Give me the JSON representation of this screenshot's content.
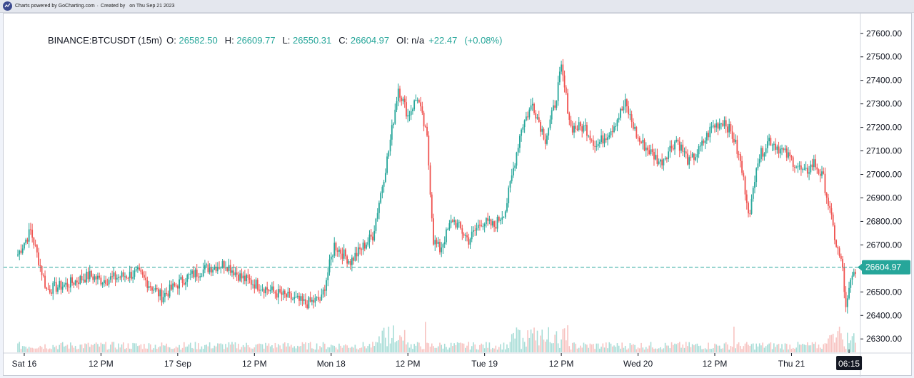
{
  "header": {
    "powered_by": "Charts powered by GoCharting.com",
    "created_by": "Created by",
    "date": "on Thu Sep 21 2023"
  },
  "legend": {
    "symbol": "BINANCE:BTCUSDT (15m)",
    "o_label": "O:",
    "o_value": "26582.50",
    "h_label": "H:",
    "h_value": "26609.77",
    "l_label": "L:",
    "l_value": "26550.31",
    "c_label": "C:",
    "c_value": "26604.97",
    "oi_label": "OI:",
    "oi_value": "n/a",
    "change": "+22.47",
    "change_pct": "(+0.08%)"
  },
  "colors": {
    "up": "#26a69a",
    "down": "#ef5350",
    "price_line": "#26a69a",
    "volume_up": "#a8ddd7",
    "volume_down": "#f7c3c1"
  },
  "chart_data": {
    "type": "candlestick",
    "ylim": [
      26240,
      27660
    ],
    "yticks": [
      27600,
      27500,
      27400,
      27300,
      27200,
      27100,
      27000,
      26900,
      26800,
      26700,
      26500,
      26400,
      26300
    ],
    "ytick_labels": [
      "27600.00",
      "27500.00",
      "27400.00",
      "27300.00",
      "27200.00",
      "27100.00",
      "27000.00",
      "26900.00",
      "26800.00",
      "26700.00",
      "26500.00",
      "26400.00",
      "26300.00"
    ],
    "current_price": 26604.97,
    "current_price_label": "26604.97",
    "time_cursor_label": "06:15",
    "xticks": [
      {
        "label": "Sat 16",
        "idx": 4
      },
      {
        "label": "12 PM",
        "idx": 52
      },
      {
        "label": "17 Sep",
        "idx": 100
      },
      {
        "label": "12 PM",
        "idx": 148
      },
      {
        "label": "Mon 18",
        "idx": 196
      },
      {
        "label": "12 PM",
        "idx": 244
      },
      {
        "label": "Tue 19",
        "idx": 292
      },
      {
        "label": "12 PM",
        "idx": 340
      },
      {
        "label": "Wed 20",
        "idx": 388
      },
      {
        "label": "12 PM",
        "idx": 436
      },
      {
        "label": "Thu 21",
        "idx": 484
      }
    ],
    "anchors": [
      [
        0,
        26660
      ],
      [
        8,
        26760
      ],
      [
        18,
        26510
      ],
      [
        30,
        26530
      ],
      [
        45,
        26570
      ],
      [
        52,
        26550
      ],
      [
        60,
        26560
      ],
      [
        75,
        26580
      ],
      [
        90,
        26480
      ],
      [
        105,
        26560
      ],
      [
        118,
        26600
      ],
      [
        130,
        26620
      ],
      [
        140,
        26560
      ],
      [
        160,
        26500
      ],
      [
        172,
        26470
      ],
      [
        180,
        26450
      ],
      [
        190,
        26470
      ],
      [
        198,
        26700
      ],
      [
        208,
        26630
      ],
      [
        222,
        26740
      ],
      [
        232,
        27100
      ],
      [
        238,
        27370
      ],
      [
        244,
        27250
      ],
      [
        250,
        27330
      ],
      [
        256,
        27150
      ],
      [
        260,
        26720
      ],
      [
        264,
        26680
      ],
      [
        272,
        26810
      ],
      [
        282,
        26720
      ],
      [
        290,
        26800
      ],
      [
        298,
        26780
      ],
      [
        305,
        26850
      ],
      [
        315,
        27200
      ],
      [
        322,
        27300
      ],
      [
        330,
        27150
      ],
      [
        336,
        27300
      ],
      [
        340,
        27450
      ],
      [
        346,
        27200
      ],
      [
        355,
        27200
      ],
      [
        362,
        27120
      ],
      [
        372,
        27200
      ],
      [
        380,
        27300
      ],
      [
        388,
        27150
      ],
      [
        395,
        27100
      ],
      [
        402,
        27050
      ],
      [
        412,
        27150
      ],
      [
        420,
        27050
      ],
      [
        426,
        27100
      ],
      [
        434,
        27200
      ],
      [
        442,
        27230
      ],
      [
        448,
        27150
      ],
      [
        452,
        27050
      ],
      [
        458,
        26820
      ],
      [
        462,
        27050
      ],
      [
        470,
        27150
      ],
      [
        478,
        27100
      ],
      [
        486,
        27050
      ],
      [
        492,
        27000
      ],
      [
        498,
        27050
      ],
      [
        504,
        26980
      ],
      [
        512,
        26700
      ],
      [
        516,
        26600
      ],
      [
        518,
        26420
      ],
      [
        521,
        26540
      ],
      [
        524,
        26600
      ]
    ],
    "count": 525,
    "volume": "relative volume bars, spikes near Mon 18 12 PM and Tue 19 12 PM"
  }
}
